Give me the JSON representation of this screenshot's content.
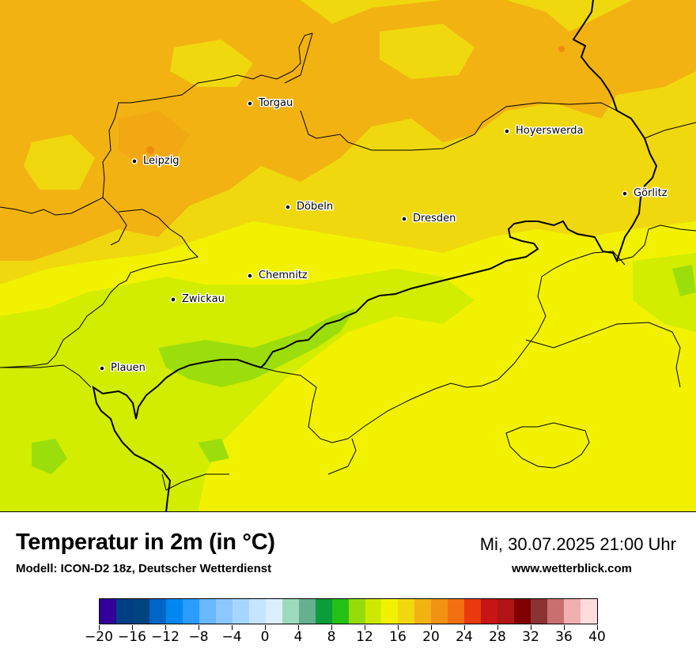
{
  "map": {
    "cities": [
      {
        "name": "Torgau"
      },
      {
        "name": "Hoyerswerda"
      },
      {
        "name": "Leipzig"
      },
      {
        "name": "Görlitz"
      },
      {
        "name": "Döbeln"
      },
      {
        "name": "Dresden"
      },
      {
        "name": "Chemnitz"
      },
      {
        "name": "Zwickau"
      },
      {
        "name": "Plauen"
      }
    ],
    "colors": {
      "orange": "#f2b212",
      "dark_yellow": "#f0d80e",
      "yellow": "#f2f200",
      "yellow_green": "#d2ed00",
      "green": "#9cde0c",
      "hot_spot": "#f28a12"
    }
  },
  "footer": {
    "title": "Temperatur in 2m (in °C)",
    "subtitle": "Modell: ICON-D2 18z, Deutscher Wetterdienst",
    "datetime": "Mi, 30.07.2025 21:00 Uhr",
    "website": "www.wetterblick.com"
  },
  "legend": {
    "unit": "°C",
    "tick_labels": [
      "−20",
      "−16",
      "−12",
      "−8",
      "−4",
      "0",
      "4",
      "8",
      "12",
      "16",
      "20",
      "24",
      "28",
      "32",
      "36",
      "40"
    ],
    "colors": [
      "#330099",
      "#003e86",
      "#00447e",
      "#0066c6",
      "#0088f0",
      "#2a9cff",
      "#6ab8ff",
      "#8cc8ff",
      "#a6d6ff",
      "#c6e4ff",
      "#dcefff",
      "#9cdcbc",
      "#66b090",
      "#0b9c3c",
      "#24c016",
      "#96dc0c",
      "#ccea00",
      "#f2f200",
      "#f0d80e",
      "#f2b212",
      "#f29212",
      "#f27012",
      "#e83a0e",
      "#c81414",
      "#b01414",
      "#800000",
      "#8c3232",
      "#c87070",
      "#f0b0b0",
      "#ffdcdc"
    ]
  }
}
